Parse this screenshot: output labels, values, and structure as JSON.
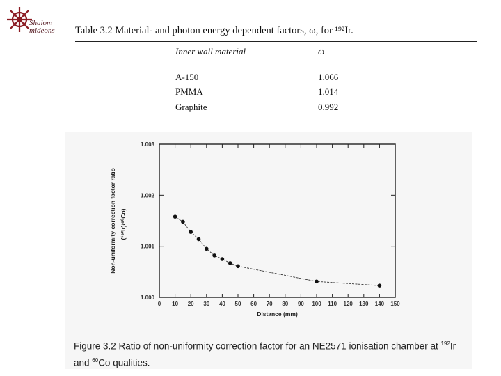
{
  "logo": {
    "line1": "Shalom",
    "line2": "mideons"
  },
  "table": {
    "title_prefix": "Table 3.2  Material- and photon energy dependent factors, ",
    "title_symbol": "ω",
    "title_suffix": ", for ¹⁹²Ir.",
    "headers": [
      "Inner wall material",
      "ω"
    ],
    "rows": [
      {
        "material": "A-150",
        "omega": "1.066"
      },
      {
        "material": "PMMA",
        "omega": "1.014"
      },
      {
        "material": "Graphite",
        "omega": "0.992"
      }
    ]
  },
  "chart_data": {
    "type": "line",
    "title": "",
    "xlabel": "Distance (mm)",
    "ylabel_line1": "Non-uniformity correction factor ratio",
    "ylabel_line2": "(¹⁹²Ir)/⁶⁰Co)",
    "xlim": [
      0,
      150
    ],
    "ylim": [
      1.0,
      1.003
    ],
    "x_ticks": [
      "0",
      "10",
      "20",
      "30",
      "40",
      "50",
      "60",
      "70",
      "80",
      "90",
      "100",
      "110",
      "120",
      "130",
      "140",
      "150"
    ],
    "y_ticks": [
      "1.000",
      "1.001",
      "1.002",
      "1.003"
    ],
    "x": [
      10,
      15,
      20,
      25,
      30,
      35,
      40,
      45,
      50,
      100,
      140
    ],
    "y": [
      1.00158,
      1.00148,
      1.00128,
      1.00114,
      1.00095,
      1.00082,
      1.00075,
      1.00067,
      1.00061,
      1.00031,
      1.00023
    ]
  },
  "caption": {
    "part1": "Figure 3.2  Ratio of non-uniformity correction factor for an NE2571 ionisation chamber at ",
    "sup1": "192",
    "part2": "Ir and ",
    "sup2": "60",
    "part3": "Co qualities."
  }
}
